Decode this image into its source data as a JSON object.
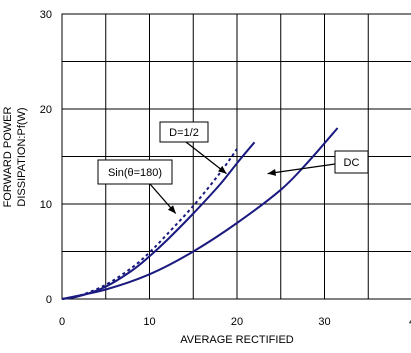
{
  "chart_data": {
    "type": "line",
    "xlabel": "AVERAGE RECTIFIED",
    "ylabel_lines": [
      "FORWARD POWER",
      "DISSIPATION:Pf(W)"
    ],
    "x_ticks": [
      "0",
      "10",
      "20",
      "30",
      "4"
    ],
    "y_ticks": [
      "0",
      "10",
      "20",
      "30"
    ],
    "xlim": [
      0,
      40
    ],
    "ylim": [
      0,
      30
    ],
    "grid": true,
    "series": [
      {
        "name": "D=1/2",
        "style": "solid",
        "color": "#1a1a80",
        "points": [
          [
            0,
            0
          ],
          [
            2,
            0.3
          ],
          [
            5,
            1.3
          ],
          [
            8,
            3.0
          ],
          [
            10,
            4.5
          ],
          [
            12,
            6.2
          ],
          [
            15,
            9.0
          ],
          [
            18,
            12.0
          ],
          [
            20,
            14.3
          ],
          [
            22,
            16.5
          ]
        ]
      },
      {
        "name": "Sin(θ=180)",
        "style": "dotted",
        "color": "#1a1a80",
        "points": [
          [
            0,
            0
          ],
          [
            2,
            0.35
          ],
          [
            5,
            1.5
          ],
          [
            8,
            3.3
          ],
          [
            10,
            4.9
          ],
          [
            12,
            6.8
          ],
          [
            15,
            9.8
          ],
          [
            18,
            13.2
          ],
          [
            20,
            15.8
          ]
        ]
      },
      {
        "name": "DC",
        "style": "solid",
        "color": "#1a1a80",
        "points": [
          [
            0,
            0
          ],
          [
            5,
            1.0
          ],
          [
            10,
            2.6
          ],
          [
            15,
            5.0
          ],
          [
            20,
            8.0
          ],
          [
            25,
            11.5
          ],
          [
            28,
            14.3
          ],
          [
            31.5,
            18.0
          ]
        ]
      }
    ],
    "annotations": [
      {
        "text": "D=1/2",
        "arrow_to": [
          18.8,
          13.2
        ]
      },
      {
        "text": "Sin(θ=180)",
        "arrow_to": [
          13,
          9.0
        ]
      },
      {
        "text": "DC",
        "arrow_to": [
          23.5,
          13.2
        ]
      }
    ]
  }
}
